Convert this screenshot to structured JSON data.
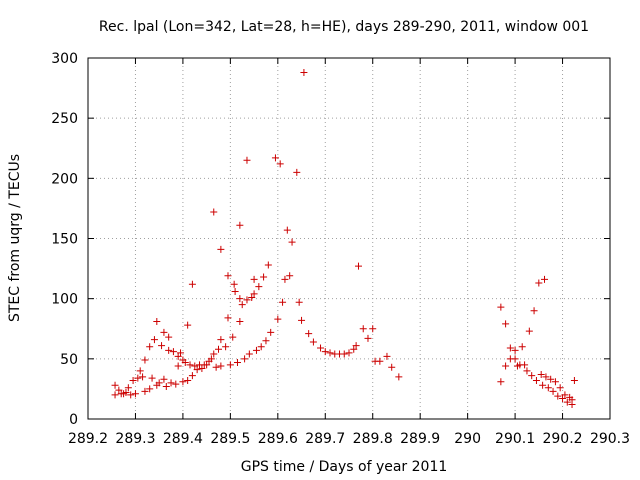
{
  "chart_data": {
    "type": "scatter",
    "title": "Rec. lpal (Lon=342, Lat=28, h=HE), days 289-290, 2011, window 001",
    "xlabel": "GPS time / Days of year 2011",
    "ylabel": "STEC from uqrg / TECUs",
    "xlim": [
      289.2,
      290.3
    ],
    "ylim": [
      0,
      300
    ],
    "x_ticks": [
      289.2,
      289.3,
      289.4,
      289.5,
      289.6,
      289.7,
      289.8,
      289.9,
      290,
      290.1,
      290.2,
      290.3
    ],
    "x_tick_labels": [
      "289.2",
      "289.3",
      "289.4",
      "289.5",
      "289.6",
      "289.7",
      "289.8",
      "289.9",
      "290",
      "290.1",
      "290.2",
      "290.3"
    ],
    "y_ticks": [
      0,
      50,
      100,
      150,
      200,
      250,
      300
    ],
    "y_tick_labels": [
      "0",
      "50",
      "100",
      "150",
      "200",
      "250",
      "300"
    ],
    "grid": true,
    "marker": "+",
    "marker_color": "#cc0000",
    "points": [
      [
        289.257,
        28
      ],
      [
        289.257,
        20
      ],
      [
        289.265,
        24
      ],
      [
        289.27,
        21
      ],
      [
        289.275,
        21
      ],
      [
        289.28,
        22
      ],
      [
        289.285,
        26
      ],
      [
        289.29,
        20
      ],
      [
        289.295,
        32
      ],
      [
        289.3,
        21
      ],
      [
        289.305,
        34
      ],
      [
        289.31,
        40
      ],
      [
        289.315,
        35
      ],
      [
        289.32,
        23
      ],
      [
        289.32,
        49
      ],
      [
        289.33,
        25
      ],
      [
        289.33,
        60
      ],
      [
        289.335,
        34
      ],
      [
        289.34,
        66
      ],
      [
        289.345,
        28
      ],
      [
        289.345,
        81
      ],
      [
        289.35,
        30
      ],
      [
        289.355,
        61
      ],
      [
        289.36,
        72
      ],
      [
        289.36,
        33
      ],
      [
        289.365,
        27
      ],
      [
        289.37,
        68
      ],
      [
        289.37,
        57
      ],
      [
        289.375,
        30
      ],
      [
        289.38,
        56
      ],
      [
        289.385,
        29
      ],
      [
        289.39,
        52
      ],
      [
        289.39,
        44
      ],
      [
        289.395,
        55
      ],
      [
        289.4,
        31
      ],
      [
        289.4,
        49
      ],
      [
        289.405,
        47
      ],
      [
        289.41,
        32
      ],
      [
        289.41,
        78
      ],
      [
        289.415,
        45
      ],
      [
        289.42,
        36
      ],
      [
        289.42,
        112
      ],
      [
        289.425,
        44
      ],
      [
        289.43,
        41
      ],
      [
        289.435,
        45
      ],
      [
        289.44,
        42
      ],
      [
        289.445,
        45
      ],
      [
        289.45,
        45
      ],
      [
        289.455,
        48
      ],
      [
        289.46,
        50
      ],
      [
        289.465,
        54
      ],
      [
        289.465,
        172
      ],
      [
        289.47,
        43
      ],
      [
        289.475,
        58
      ],
      [
        289.48,
        44
      ],
      [
        289.48,
        66
      ],
      [
        289.48,
        141
      ],
      [
        289.49,
        60
      ],
      [
        289.495,
        84
      ],
      [
        289.495,
        119
      ],
      [
        289.5,
        45
      ],
      [
        289.505,
        68
      ],
      [
        289.508,
        112
      ],
      [
        289.51,
        106
      ],
      [
        289.515,
        47
      ],
      [
        289.52,
        81
      ],
      [
        289.52,
        161
      ],
      [
        289.52,
        100
      ],
      [
        289.525,
        95
      ],
      [
        289.53,
        50
      ],
      [
        289.535,
        99
      ],
      [
        289.535,
        215
      ],
      [
        289.54,
        54
      ],
      [
        289.545,
        101
      ],
      [
        289.55,
        104
      ],
      [
        289.55,
        116
      ],
      [
        289.555,
        57
      ],
      [
        289.56,
        110
      ],
      [
        289.565,
        60
      ],
      [
        289.57,
        118
      ],
      [
        289.575,
        65
      ],
      [
        289.58,
        128
      ],
      [
        289.585,
        72
      ],
      [
        289.595,
        217
      ],
      [
        289.6,
        83
      ],
      [
        289.605,
        212
      ],
      [
        289.61,
        97
      ],
      [
        289.615,
        116
      ],
      [
        289.62,
        157
      ],
      [
        289.625,
        119
      ],
      [
        289.63,
        147
      ],
      [
        289.64,
        205
      ],
      [
        289.645,
        97
      ],
      [
        289.65,
        82
      ],
      [
        289.655,
        288
      ],
      [
        289.665,
        71
      ],
      [
        289.675,
        64
      ],
      [
        289.69,
        59
      ],
      [
        289.7,
        56
      ],
      [
        289.71,
        55
      ],
      [
        289.72,
        54
      ],
      [
        289.73,
        54
      ],
      [
        289.74,
        54
      ],
      [
        289.75,
        55
      ],
      [
        289.76,
        58
      ],
      [
        289.765,
        61
      ],
      [
        289.77,
        127
      ],
      [
        289.78,
        75
      ],
      [
        289.79,
        67
      ],
      [
        289.8,
        75
      ],
      [
        289.805,
        48
      ],
      [
        289.815,
        48
      ],
      [
        289.83,
        52
      ],
      [
        289.84,
        43
      ],
      [
        289.855,
        35
      ],
      [
        290.07,
        93
      ],
      [
        290.07,
        31
      ],
      [
        290.08,
        79
      ],
      [
        290.08,
        44
      ],
      [
        290.09,
        59
      ],
      [
        290.09,
        50
      ],
      [
        290.1,
        57
      ],
      [
        290.1,
        50
      ],
      [
        290.105,
        44
      ],
      [
        290.11,
        45
      ],
      [
        290.115,
        60
      ],
      [
        290.12,
        45
      ],
      [
        290.125,
        40
      ],
      [
        290.13,
        73
      ],
      [
        290.135,
        36
      ],
      [
        290.14,
        90
      ],
      [
        290.145,
        32
      ],
      [
        290.15,
        113
      ],
      [
        290.155,
        37
      ],
      [
        290.158,
        28
      ],
      [
        290.162,
        116
      ],
      [
        290.165,
        35
      ],
      [
        290.17,
        26
      ],
      [
        290.175,
        33
      ],
      [
        290.18,
        23
      ],
      [
        290.185,
        31
      ],
      [
        290.19,
        19
      ],
      [
        290.195,
        26
      ],
      [
        290.2,
        17
      ],
      [
        290.205,
        20
      ],
      [
        290.21,
        14
      ],
      [
        290.215,
        18
      ],
      [
        290.22,
        12
      ],
      [
        290.22,
        16
      ],
      [
        290.225,
        32
      ]
    ]
  }
}
